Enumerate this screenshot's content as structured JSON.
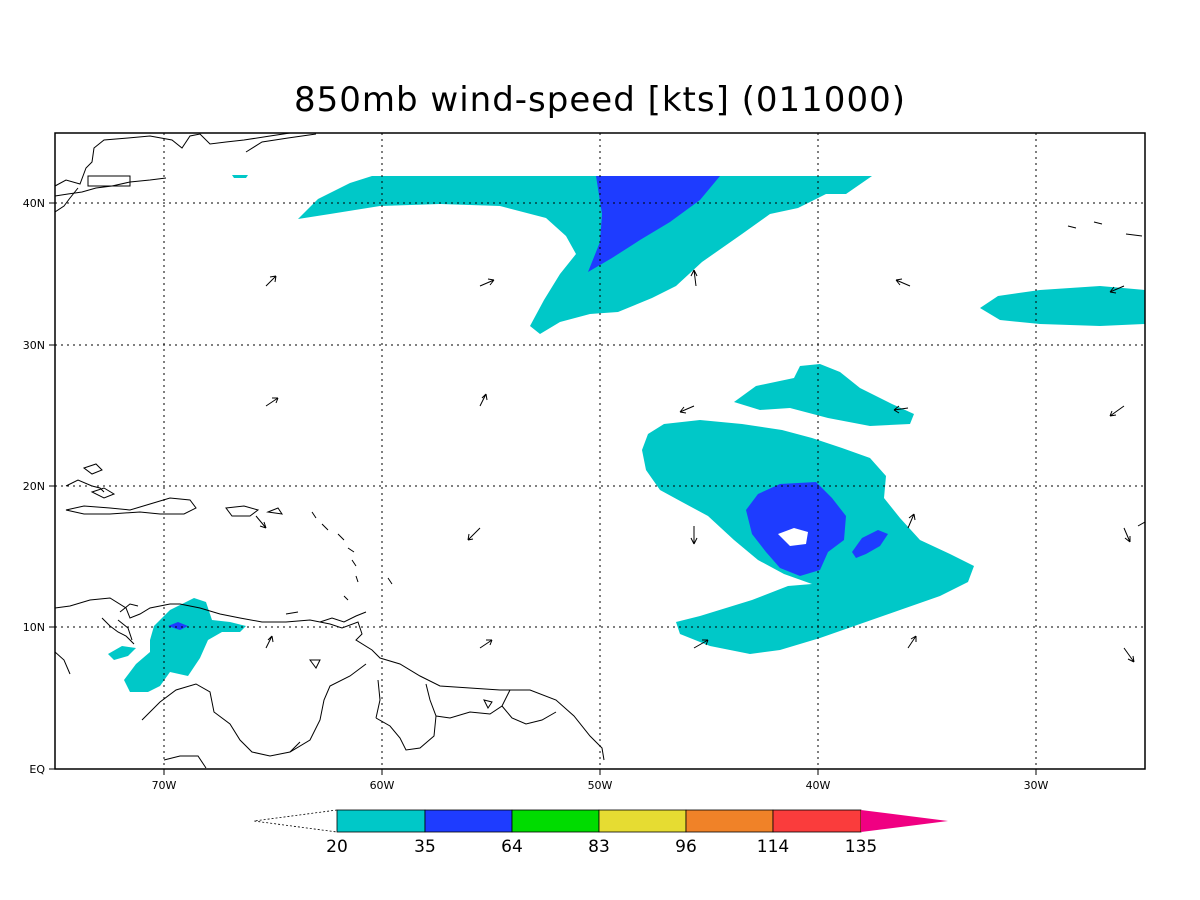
{
  "title": "850mb wind-speed [kts] (011000)",
  "lon_labels": [
    "70W",
    "60W",
    "50W",
    "40W",
    "30W"
  ],
  "lat_labels": [
    "EQ",
    "10N",
    "20N",
    "30N",
    "40N"
  ],
  "colorbar": {
    "labels": [
      "20",
      "35",
      "64",
      "83",
      "96",
      "114",
      "135"
    ],
    "colors": [
      "#00c8c8",
      "#1e3cff",
      "#00dc00",
      "#e6dc32",
      "#f08228",
      "#fa3c3c",
      "#f00082"
    ]
  },
  "shading_colors": {
    "cyan": "#00c8c8",
    "blue": "#1e3cff"
  }
}
